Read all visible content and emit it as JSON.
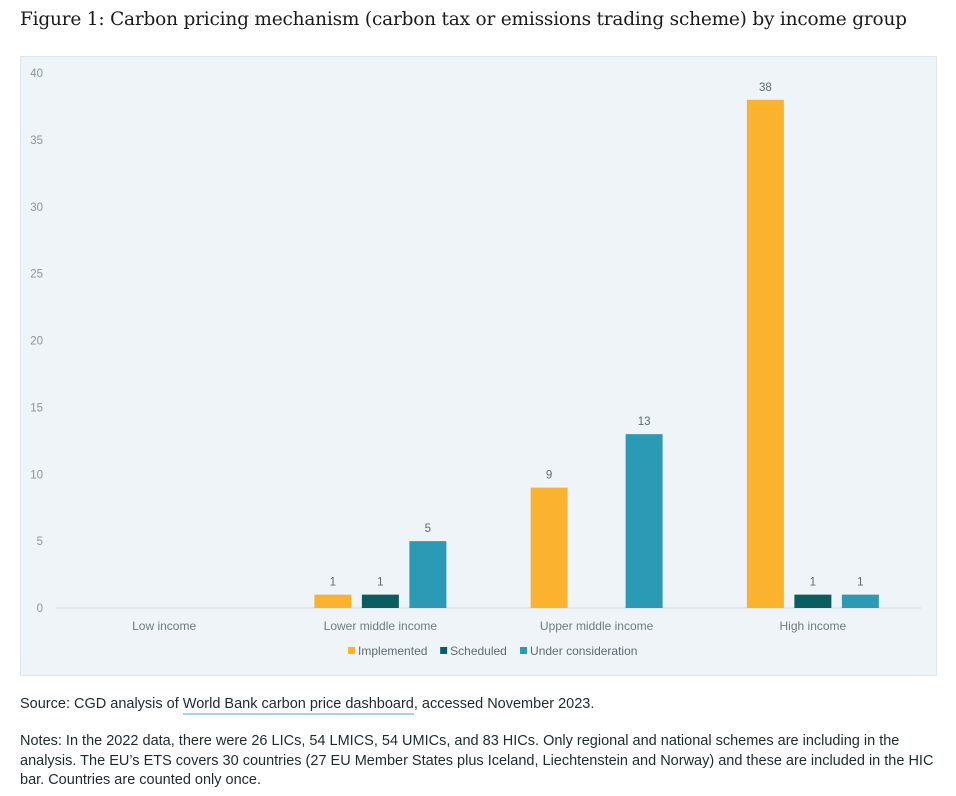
{
  "figure_title": "Figure 1: Carbon pricing mechanism (carbon tax or emissions trading scheme) by income group",
  "chart_data": {
    "type": "bar",
    "title": "",
    "xlabel": "",
    "ylabel": "",
    "ylim": [
      0,
      40
    ],
    "yticks": [
      "0",
      "5",
      "10",
      "15",
      "20",
      "25",
      "30",
      "35",
      "40"
    ],
    "categories": [
      "Low income",
      "Lower middle income",
      "Upper middle income",
      "High income"
    ],
    "series": [
      {
        "name": "Implemented",
        "color": "#fbb22f",
        "values": [
          null,
          1,
          9,
          38
        ]
      },
      {
        "name": "Scheduled",
        "color": "#0a5e62",
        "values": [
          null,
          1,
          null,
          1
        ]
      },
      {
        "name": "Under consideration",
        "color": "#2b9bb5",
        "values": [
          null,
          5,
          13,
          1
        ]
      }
    ],
    "legend_position": "bottom",
    "data_labels": true,
    "grid": false
  },
  "source": {
    "prefix": "Source: CGD analysis of ",
    "link_text": "World Bank carbon price dashboard",
    "suffix": ", accessed November 2023."
  },
  "notes": "Notes: In the 2022 data, there were 26 LICs, 54 LMICS, 54 UMICs, and 83 HICs. Only regional and national schemes are including in the analysis. The EU’s ETS covers 30 countries (27 EU Member States plus Iceland, Liechtenstein and Norway) and these are included in the HIC bar. Countries are counted only once."
}
